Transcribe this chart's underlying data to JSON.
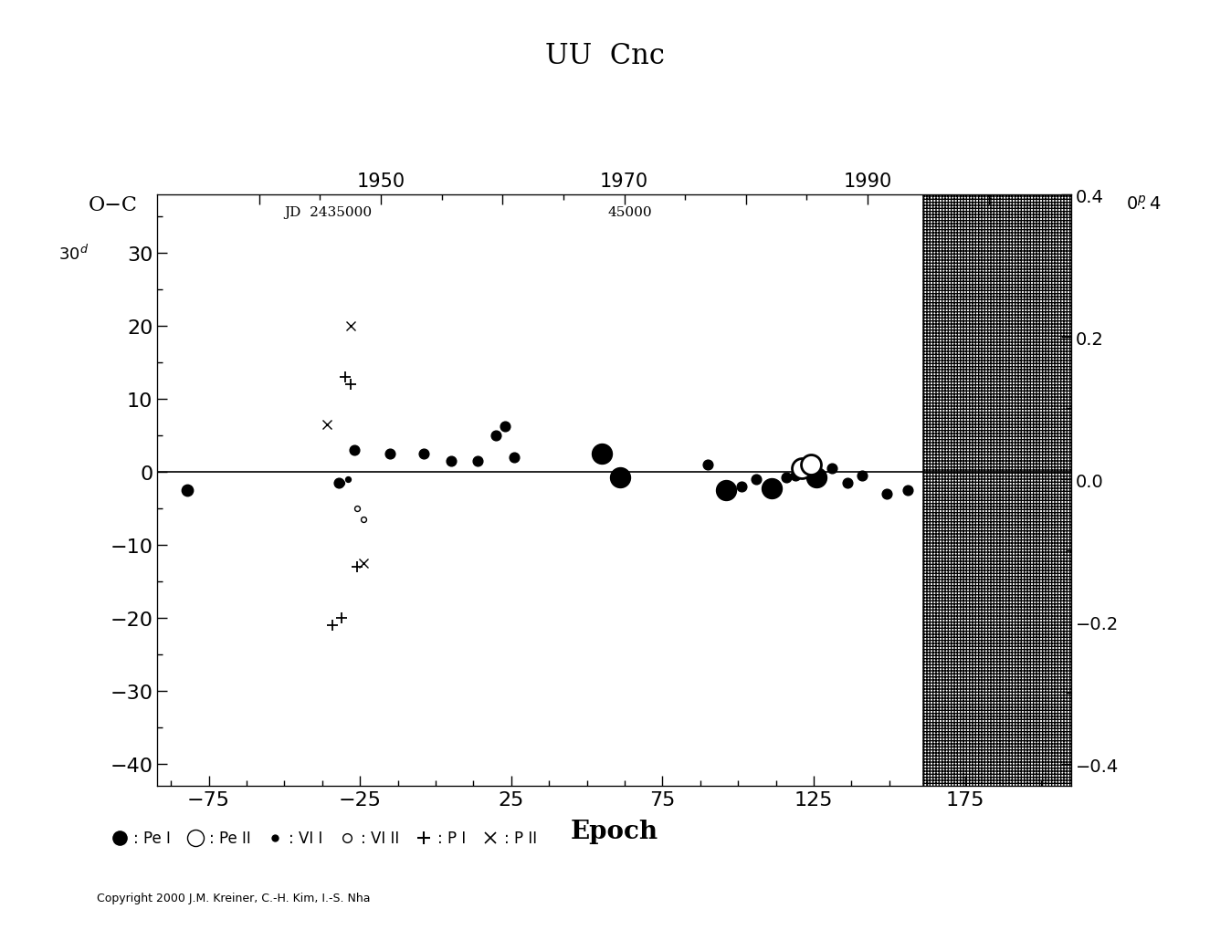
{
  "title": "UU  Cnc",
  "xlabel": "Epoch",
  "xlim": [
    -92,
    210
  ],
  "ylim": [
    -43,
    38
  ],
  "xticks": [
    -75,
    -25,
    25,
    75,
    125,
    175
  ],
  "yticks_left": [
    -40,
    -30,
    -20,
    -10,
    0,
    10,
    20,
    30
  ],
  "yticks_right": [
    -0.4,
    -0.2,
    0.0,
    0.2,
    0.4
  ],
  "hatched_epoch_start": 161,
  "hatched_epoch_end": 210,
  "jd_label_text": "JD  2435000",
  "jd_label_epoch": -50,
  "jd_label_oc": 36.5,
  "jd_45000_text": "45000",
  "jd_45000_epoch": 57,
  "jd_45000_oc": 36.5,
  "copyright": "Copyright 2000 J.M. Kreiner, C.-H. Kim, I.-S. Nha",
  "period_days": 90.8,
  "year_at_epoch0": 1954.5,
  "Pe_I": [
    {
      "epoch": -82,
      "oc": -2.5,
      "size": 80
    },
    {
      "epoch": -32,
      "oc": -1.5,
      "size": 60
    },
    {
      "epoch": -27,
      "oc": 3.0,
      "size": 60
    },
    {
      "epoch": -15,
      "oc": 2.5,
      "size": 60
    },
    {
      "epoch": -4,
      "oc": 2.5,
      "size": 60
    },
    {
      "epoch": 5,
      "oc": 1.5,
      "size": 60
    },
    {
      "epoch": 14,
      "oc": 1.5,
      "size": 60
    },
    {
      "epoch": 20,
      "oc": 5.0,
      "size": 60
    },
    {
      "epoch": 23,
      "oc": 6.2,
      "size": 60
    },
    {
      "epoch": 26,
      "oc": 2.0,
      "size": 60
    },
    {
      "epoch": 55,
      "oc": 2.5,
      "size": 250
    },
    {
      "epoch": 61,
      "oc": -0.8,
      "size": 250
    },
    {
      "epoch": 90,
      "oc": 1.0,
      "size": 60
    },
    {
      "epoch": 96,
      "oc": -2.5,
      "size": 250
    },
    {
      "epoch": 101,
      "oc": -2.0,
      "size": 60
    },
    {
      "epoch": 106,
      "oc": -1.0,
      "size": 60
    },
    {
      "epoch": 111,
      "oc": -2.2,
      "size": 250
    },
    {
      "epoch": 116,
      "oc": -0.8,
      "size": 60
    },
    {
      "epoch": 119,
      "oc": -0.5,
      "size": 60
    },
    {
      "epoch": 126,
      "oc": -0.8,
      "size": 250
    },
    {
      "epoch": 131,
      "oc": 0.5,
      "size": 60
    },
    {
      "epoch": 136,
      "oc": -1.5,
      "size": 60
    },
    {
      "epoch": 141,
      "oc": -0.5,
      "size": 60
    },
    {
      "epoch": 149,
      "oc": -3.0,
      "size": 60
    },
    {
      "epoch": 156,
      "oc": -2.5,
      "size": 60
    }
  ],
  "Pe_II": [
    {
      "epoch": 121,
      "oc": 0.5,
      "size": 250
    },
    {
      "epoch": 124,
      "oc": 1.0,
      "size": 250
    }
  ],
  "VI_I": [
    {
      "epoch": -31,
      "oc": -1.5,
      "size": 18
    },
    {
      "epoch": -29,
      "oc": -1.0,
      "size": 18
    }
  ],
  "VI_II": [
    {
      "epoch": -26,
      "oc": -5.0,
      "size": 18
    },
    {
      "epoch": -24,
      "oc": -6.5,
      "size": 18
    }
  ],
  "P_I": [
    {
      "epoch": -30,
      "oc": 13.0
    },
    {
      "epoch": -28,
      "oc": 12.0
    },
    {
      "epoch": -26,
      "oc": -13.0
    },
    {
      "epoch": -34,
      "oc": -21.0
    },
    {
      "epoch": -31,
      "oc": -20.0
    }
  ],
  "P_II": [
    {
      "epoch": -36,
      "oc": 6.5
    },
    {
      "epoch": -28,
      "oc": 20.0
    },
    {
      "epoch": -24,
      "oc": -12.5
    }
  ]
}
